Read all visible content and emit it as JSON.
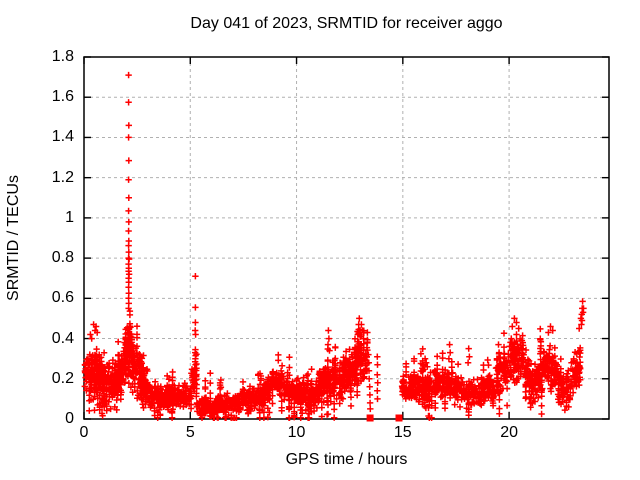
{
  "chart_data": {
    "type": "scatter",
    "title": "Day 041 of 2023, SRMTID for receiver aggo",
    "xlabel": "GPS time / hours",
    "ylabel": "SRMTID / TECUs",
    "xlim": [
      0,
      24.7
    ],
    "ylim": [
      0,
      1.8
    ],
    "xticks": [
      0,
      5,
      10,
      15,
      20
    ],
    "yticks": [
      0,
      0.2,
      0.4,
      0.6,
      0.8,
      1.0,
      1.2,
      1.4,
      1.6,
      1.8
    ],
    "grid": {
      "enabled": true,
      "style": "dashed",
      "color": "#b0b0b0"
    },
    "border_color": "#000000",
    "background": "#ffffff",
    "marker": "plus",
    "marker_color": "#ff0000",
    "seed": 42,
    "series_name": "SRMTID",
    "segments_comment": "dense noisy scatter approximated by segments: [x_start,x_end,base_start,base_end,spread,count]",
    "segments": [
      [
        0.02,
        0.35,
        0.24,
        0.22,
        0.095,
        40
      ],
      [
        0.35,
        1.05,
        0.22,
        0.2,
        0.105,
        115
      ],
      [
        1.05,
        1.6,
        0.19,
        0.18,
        0.08,
        70
      ],
      [
        1.6,
        1.95,
        0.22,
        0.27,
        0.085,
        55
      ],
      [
        1.95,
        2.25,
        0.34,
        0.32,
        0.13,
        55
      ],
      [
        2.25,
        2.65,
        0.28,
        0.24,
        0.09,
        45
      ],
      [
        2.65,
        3.1,
        0.19,
        0.14,
        0.07,
        55
      ],
      [
        3.1,
        4.2,
        0.11,
        0.1,
        0.05,
        125
      ],
      [
        4.2,
        5.05,
        0.1,
        0.12,
        0.05,
        85
      ],
      [
        5.05,
        5.3,
        0.21,
        0.19,
        0.08,
        30
      ],
      [
        5.3,
        6.3,
        0.07,
        0.05,
        0.04,
        95
      ],
      [
        6.3,
        7.2,
        0.075,
        0.08,
        0.04,
        85
      ],
      [
        7.2,
        8.4,
        0.09,
        0.1,
        0.045,
        105
      ],
      [
        8.4,
        8.85,
        0.12,
        0.18,
        0.05,
        45
      ],
      [
        8.85,
        9.4,
        0.2,
        0.16,
        0.055,
        55
      ],
      [
        9.4,
        10.4,
        0.14,
        0.13,
        0.045,
        95
      ],
      [
        10.4,
        10.95,
        0.13,
        0.12,
        0.06,
        55
      ],
      [
        10.95,
        11.45,
        0.15,
        0.19,
        0.07,
        55
      ],
      [
        11.45,
        12.1,
        0.18,
        0.2,
        0.075,
        65
      ],
      [
        12.1,
        12.75,
        0.2,
        0.25,
        0.08,
        70
      ],
      [
        12.75,
        13.35,
        0.27,
        0.29,
        0.1,
        75
      ],
      [
        14.95,
        15.45,
        0.17,
        0.15,
        0.055,
        50
      ],
      [
        15.45,
        16.4,
        0.15,
        0.16,
        0.06,
        90
      ],
      [
        16.4,
        17.4,
        0.17,
        0.18,
        0.06,
        95
      ],
      [
        17.4,
        18.4,
        0.15,
        0.13,
        0.06,
        90
      ],
      [
        18.4,
        19.3,
        0.13,
        0.14,
        0.06,
        80
      ],
      [
        19.3,
        20.0,
        0.18,
        0.26,
        0.08,
        70
      ],
      [
        20.0,
        20.7,
        0.31,
        0.3,
        0.095,
        85
      ],
      [
        20.7,
        21.2,
        0.21,
        0.15,
        0.08,
        50
      ],
      [
        21.2,
        21.6,
        0.2,
        0.26,
        0.08,
        45
      ],
      [
        21.6,
        22.3,
        0.27,
        0.22,
        0.1,
        75
      ],
      [
        22.3,
        22.9,
        0.17,
        0.14,
        0.08,
        55
      ],
      [
        22.9,
        23.35,
        0.21,
        0.24,
        0.08,
        45
      ]
    ],
    "extra_points_comment": "explicit notable points: the 1.71 TECU spike column near hour 2.1, the 0.71 spike near 5.24, peaks and tails",
    "extra_points": [
      [
        0.3,
        0.42
      ],
      [
        0.36,
        0.4
      ],
      [
        0.45,
        0.47
      ],
      [
        0.52,
        0.44
      ],
      [
        0.57,
        0.46
      ],
      [
        0.62,
        0.43
      ],
      [
        0.95,
        0.06
      ],
      [
        1.25,
        0.05
      ],
      [
        1.45,
        0.06
      ],
      [
        2.1,
        1.71
      ],
      [
        2.1,
        1.575
      ],
      [
        2.11,
        1.46
      ],
      [
        2.1,
        1.4
      ],
      [
        2.11,
        1.285
      ],
      [
        2.1,
        1.19
      ],
      [
        2.11,
        1.1
      ],
      [
        2.1,
        1.035
      ],
      [
        2.11,
        0.98
      ],
      [
        2.1,
        0.935
      ],
      [
        2.11,
        0.885
      ],
      [
        2.1,
        0.862
      ],
      [
        2.11,
        0.83
      ],
      [
        2.1,
        0.8
      ],
      [
        2.12,
        0.795
      ],
      [
        2.1,
        0.77
      ],
      [
        2.11,
        0.75
      ],
      [
        2.1,
        0.735
      ],
      [
        2.12,
        0.72
      ],
      [
        2.1,
        0.7
      ],
      [
        2.11,
        0.68
      ],
      [
        2.1,
        0.655
      ],
      [
        2.11,
        0.625
      ],
      [
        2.1,
        0.6
      ],
      [
        2.11,
        0.575
      ],
      [
        2.1,
        0.55
      ],
      [
        5.24,
        0.71
      ],
      [
        5.24,
        0.555
      ],
      [
        5.24,
        0.48
      ],
      [
        5.23,
        0.44
      ],
      [
        5.25,
        0.42
      ],
      [
        5.24,
        0.345
      ],
      [
        5.23,
        0.33
      ],
      [
        5.25,
        0.315
      ],
      [
        5.24,
        0.3
      ],
      [
        5.23,
        0.285
      ],
      [
        5.25,
        0.27
      ],
      [
        11.5,
        0.44
      ],
      [
        11.52,
        0.4
      ],
      [
        11.48,
        0.37
      ],
      [
        11.55,
        0.34
      ],
      [
        12.88,
        0.42
      ],
      [
        12.95,
        0.5
      ],
      [
        13.05,
        0.47
      ],
      [
        13.1,
        0.44
      ],
      [
        13.15,
        0.4
      ],
      [
        13.38,
        0.32
      ],
      [
        13.4,
        0.28
      ],
      [
        13.41,
        0.24
      ],
      [
        13.42,
        0.2
      ],
      [
        13.44,
        0.16
      ],
      [
        13.45,
        0.12
      ],
      [
        13.46,
        0.08
      ],
      [
        13.47,
        0.05
      ],
      [
        13.8,
        0.31
      ],
      [
        13.81,
        0.27
      ],
      [
        13.8,
        0.22
      ],
      [
        13.82,
        0.18
      ],
      [
        13.8,
        0.14
      ],
      [
        13.81,
        0.1
      ],
      [
        16.05,
        0.3
      ],
      [
        16.1,
        0.28
      ],
      [
        16.15,
        0.26
      ],
      [
        17.17,
        0.3
      ],
      [
        17.2,
        0.37
      ],
      [
        17.23,
        0.33
      ],
      [
        18.07,
        0.28
      ],
      [
        18.1,
        0.35
      ],
      [
        18.13,
        0.31
      ],
      [
        19.47,
        0.3
      ],
      [
        19.5,
        0.37
      ],
      [
        19.53,
        0.33
      ],
      [
        19.56,
        0.27
      ],
      [
        20.15,
        0.46
      ],
      [
        20.25,
        0.5
      ],
      [
        20.35,
        0.48
      ],
      [
        20.45,
        0.45
      ],
      [
        21.85,
        0.43
      ],
      [
        21.95,
        0.46
      ],
      [
        22.05,
        0.44
      ],
      [
        21.1,
        0.08
      ],
      [
        22.8,
        0.06
      ],
      [
        23.3,
        0.45
      ],
      [
        23.38,
        0.5
      ],
      [
        23.4,
        0.47
      ],
      [
        23.42,
        0.52
      ],
      [
        23.43,
        0.49
      ],
      [
        23.44,
        0.55
      ],
      [
        23.46,
        0.585
      ],
      [
        23.48,
        0.53
      ],
      [
        23.5,
        0.55
      ]
    ],
    "zero_markers_comment": "solid red squares sitting on the x-axis (y ~ 0)",
    "zero_markers": [
      13.46,
      14.82
    ]
  }
}
